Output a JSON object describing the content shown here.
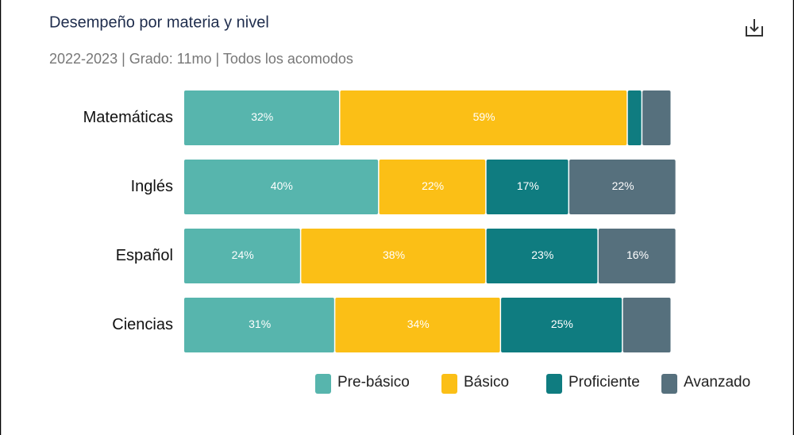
{
  "chart_data": {
    "type": "stacked-bar-horizontal",
    "title": "Desempeño por materia y nivel",
    "subtitle": "2022-2023 | Grado: 11mo | Todos los acomodos",
    "categories": [
      "Matemáticas",
      "Inglés",
      "Español",
      "Ciencias"
    ],
    "xlim": [
      0,
      100
    ],
    "series": [
      {
        "name": "Pre-básico",
        "color": "#57b5ad",
        "values": [
          32,
          40,
          24,
          31
        ],
        "value_labels": [
          "32%",
          "40%",
          "24%",
          "31%"
        ]
      },
      {
        "name": "Básico",
        "color": "#fbbf16",
        "values": [
          59,
          22,
          38,
          34
        ],
        "value_labels": [
          "59%",
          "22%",
          "38%",
          "34%"
        ]
      },
      {
        "name": "Proficiente",
        "color": "#0f7c80",
        "values": [
          3,
          17,
          23,
          25
        ],
        "value_labels": [
          null,
          "17%",
          "23%",
          "25%"
        ]
      },
      {
        "name": "Avanzado",
        "color": "#56707d",
        "values": [
          6,
          22,
          16,
          10
        ],
        "value_labels": [
          null,
          "22%",
          "16%",
          null
        ]
      }
    ]
  }
}
